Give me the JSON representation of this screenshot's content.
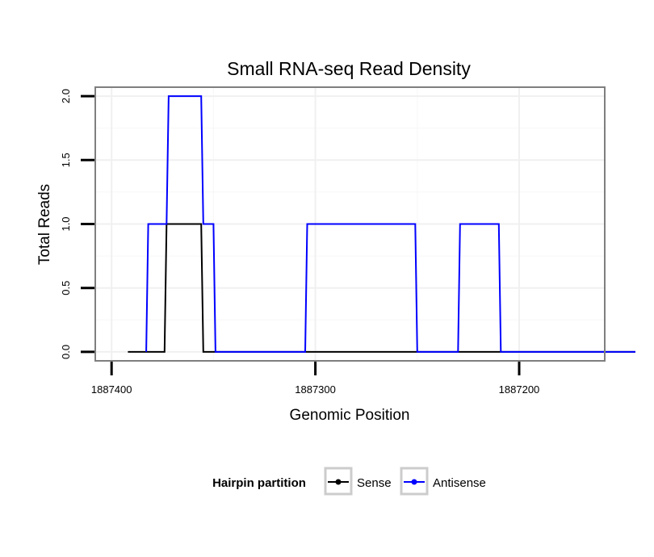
{
  "chart_data": {
    "type": "line",
    "title": "Small RNA-seq Read Density",
    "xlabel": "Genomic Position",
    "ylabel": "Total Reads",
    "xlim": [
      1887408,
      1887158
    ],
    "x_reversed": true,
    "ylim": [
      -0.07,
      2.07
    ],
    "x_ticks": [
      1887400,
      1887300,
      1887200
    ],
    "x_tick_labels": [
      "1887400",
      "1887300",
      "1887200"
    ],
    "y_ticks": [
      0.0,
      0.5,
      1.0,
      1.5,
      2.0
    ],
    "y_tick_labels": [
      "0.0",
      "0.5",
      "1.0",
      "1.5",
      "2.0"
    ],
    "grid": true,
    "legend": {
      "title": "Hairpin partition",
      "position": "bottom"
    },
    "series": [
      {
        "name": "Sense",
        "color": "#000000",
        "points": [
          [
            1887392,
            0
          ],
          [
            1887374,
            0
          ],
          [
            1887373,
            1
          ],
          [
            1887356,
            1
          ],
          [
            1887355,
            0
          ],
          [
            1887305,
            0
          ],
          [
            1887304,
            0
          ],
          [
            1887250,
            0
          ],
          [
            1887249,
            0
          ],
          [
            1887143,
            0
          ]
        ]
      },
      {
        "name": "Antisense",
        "color": "#0000ff",
        "points": [
          [
            1887383,
            0
          ],
          [
            1887382,
            1
          ],
          [
            1887373,
            1
          ],
          [
            1887372,
            2
          ],
          [
            1887356,
            2
          ],
          [
            1887355,
            1
          ],
          [
            1887350,
            1
          ],
          [
            1887349,
            0
          ],
          [
            1887339,
            0
          ],
          [
            1887305,
            0
          ],
          [
            1887304,
            1
          ],
          [
            1887251,
            1
          ],
          [
            1887250,
            0
          ],
          [
            1887230,
            0
          ],
          [
            1887229,
            1
          ],
          [
            1887210,
            1
          ],
          [
            1887209,
            0
          ],
          [
            1887143,
            0
          ]
        ]
      }
    ]
  }
}
